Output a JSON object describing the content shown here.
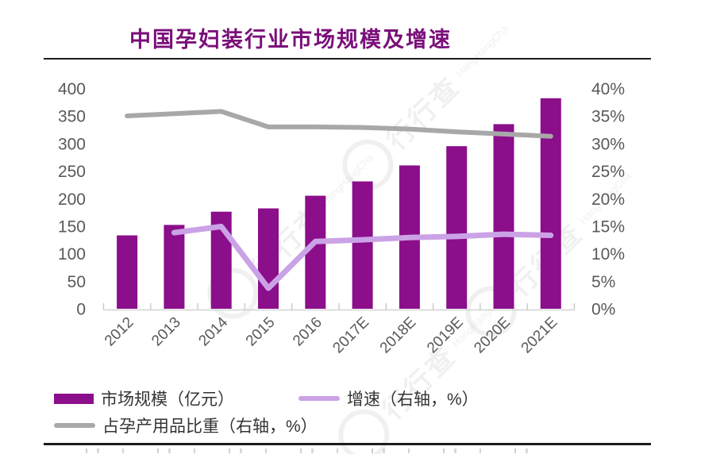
{
  "title": "中国孕妇装行业市场规模及增速",
  "watermark": {
    "cn": "行行查",
    "en": "HangHangCha"
  },
  "legend": {
    "items": [
      {
        "label": "市场规模（亿元）",
        "marker": "bar-swatch",
        "color": "#8b0e8b"
      },
      {
        "label": "增速（右轴，%）",
        "marker": "line-swatch",
        "color": "#cba2e6"
      },
      {
        "label": "占孕产用品比重（右轴，%）",
        "marker": "line-swatch",
        "color": "#a8a8a8"
      }
    ]
  },
  "chart_data": {
    "type": "bar",
    "title": "中国孕妇装行业市场规模及增速",
    "categories": [
      "2012",
      "2013",
      "2014",
      "2015",
      "2016",
      "2017E",
      "2018E",
      "2019E",
      "2020E",
      "2021E"
    ],
    "series": [
      {
        "name": "市场规模（亿元）",
        "type": "bar",
        "axis": "left",
        "color": "#8b0e8b",
        "values": [
          134,
          153,
          177,
          183,
          206,
          232,
          261,
          296,
          336,
          383
        ]
      },
      {
        "name": "增速（右轴，%）",
        "type": "line",
        "axis": "right",
        "color": "#cba2e6",
        "values": [
          null,
          13.9,
          15,
          3.8,
          12.3,
          12.6,
          13,
          13.2,
          13.6,
          13.4
        ]
      },
      {
        "name": "占孕产用品比重（右轴，%）",
        "type": "line",
        "axis": "right",
        "color": "#a8a8a8",
        "values": [
          35.1,
          35.5,
          35.9,
          33.1,
          33.1,
          33,
          32.7,
          32.2,
          31.8,
          31.4
        ]
      }
    ],
    "left_axis": {
      "min": 0,
      "max": 400,
      "tick_labels": [
        "0",
        "50",
        "100",
        "150",
        "200",
        "250",
        "300",
        "350",
        "400"
      ]
    },
    "right_axis": {
      "min": 0,
      "max": 40,
      "tick_labels": [
        "0%",
        "5%",
        "10%",
        "15%",
        "20%",
        "25%",
        "30%",
        "35%",
        "40%"
      ]
    },
    "grid": false,
    "legend_position": "bottom",
    "axis_label_color": "#595959"
  }
}
